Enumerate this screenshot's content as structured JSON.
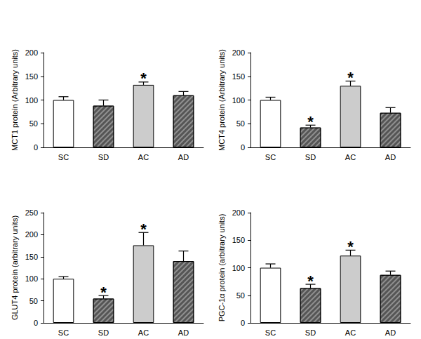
{
  "chart_data": [
    {
      "type": "bar",
      "ylabel": "MCT1 protein (Arbitrary units)",
      "categories": [
        "SC",
        "SD",
        "AC",
        "AD"
      ],
      "values": [
        100,
        88,
        132,
        110
      ],
      "errors": [
        7,
        12,
        6,
        8
      ],
      "colors": [
        "#ffffff",
        "#555555",
        "#cccccc",
        "#555555"
      ],
      "annotations": [
        {
          "category": "AC",
          "text": "*"
        }
      ],
      "ylim": [
        0,
        200
      ],
      "yticks": [
        0,
        50,
        100,
        150,
        200
      ],
      "grid": false
    },
    {
      "type": "bar",
      "ylabel": "MCT4 protein (Arbitrary units)",
      "categories": [
        "SC",
        "SD",
        "AC",
        "AD"
      ],
      "values": [
        100,
        42,
        130,
        73
      ],
      "errors": [
        6,
        5,
        10,
        11
      ],
      "colors": [
        "#ffffff",
        "#555555",
        "#cccccc",
        "#555555"
      ],
      "annotations": [
        {
          "category": "SD",
          "text": "*"
        },
        {
          "category": "AC",
          "text": "*"
        }
      ],
      "ylim": [
        0,
        200
      ],
      "yticks": [
        0,
        50,
        100,
        150,
        200
      ],
      "grid": false
    },
    {
      "type": "bar",
      "ylabel": "GLUT4 protein (arbitrary units)",
      "categories": [
        "SC",
        "SD",
        "AC",
        "AD"
      ],
      "values": [
        100,
        55,
        176,
        140
      ],
      "errors": [
        5,
        7,
        29,
        23
      ],
      "colors": [
        "#ffffff",
        "#555555",
        "#cccccc",
        "#555555"
      ],
      "annotations": [
        {
          "category": "SD",
          "text": "*"
        },
        {
          "category": "AC",
          "text": "*"
        }
      ],
      "ylim": [
        0,
        250
      ],
      "yticks": [
        0,
        50,
        100,
        150,
        200,
        250
      ],
      "grid": false
    },
    {
      "type": "bar",
      "ylabel": "PGC-1α protein (arbitrary units)",
      "categories": [
        "SC",
        "SD",
        "AC",
        "AD"
      ],
      "values": [
        100,
        63,
        122,
        87
      ],
      "errors": [
        7,
        7,
        10,
        7
      ],
      "colors": [
        "#ffffff",
        "#555555",
        "#cccccc",
        "#555555"
      ],
      "annotations": [
        {
          "category": "SD",
          "text": "*"
        },
        {
          "category": "AC",
          "text": "*"
        }
      ],
      "ylim": [
        0,
        200
      ],
      "yticks": [
        0,
        50,
        100,
        150,
        200
      ],
      "grid": false
    }
  ]
}
